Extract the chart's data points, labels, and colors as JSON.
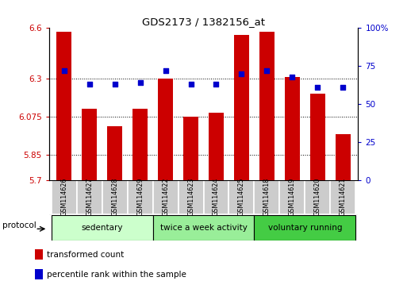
{
  "title": "GDS2173 / 1382156_at",
  "samples": [
    "GSM114626",
    "GSM114627",
    "GSM114628",
    "GSM114629",
    "GSM114622",
    "GSM114623",
    "GSM114624",
    "GSM114625",
    "GSM114618",
    "GSM114619",
    "GSM114620",
    "GSM114621"
  ],
  "transformed_count": [
    6.58,
    6.12,
    6.02,
    6.12,
    6.3,
    6.075,
    6.1,
    6.56,
    6.58,
    6.31,
    6.21,
    5.97
  ],
  "percentile_rank": [
    72,
    63,
    63,
    64,
    72,
    63,
    63,
    70,
    72,
    68,
    61,
    61
  ],
  "y_min": 5.7,
  "y_max": 6.6,
  "y_ticks": [
    5.7,
    5.85,
    6.075,
    6.3,
    6.6
  ],
  "y_tick_labels": [
    "5.7",
    "5.85",
    "6.075",
    "6.3",
    "6.6"
  ],
  "y2_ticks": [
    0,
    25,
    50,
    75,
    100
  ],
  "y2_tick_labels": [
    "0",
    "25",
    "50",
    "75",
    "100%"
  ],
  "bar_color": "#cc0000",
  "dot_color": "#0000cc",
  "base": 5.7,
  "groups": [
    {
      "label": "sedentary",
      "start": 0,
      "end": 4,
      "color": "#ccffcc"
    },
    {
      "label": "twice a week activity",
      "start": 4,
      "end": 8,
      "color": "#99ee99"
    },
    {
      "label": "voluntary running",
      "start": 8,
      "end": 12,
      "color": "#44cc44"
    }
  ],
  "protocol_label": "protocol",
  "legend_items": [
    {
      "color": "#cc0000",
      "label": "transformed count"
    },
    {
      "color": "#0000cc",
      "label": "percentile rank within the sample"
    }
  ],
  "tick_color_left": "#cc0000",
  "tick_color_right": "#0000cc",
  "sample_box_color": "#cccccc",
  "bar_width": 0.6
}
